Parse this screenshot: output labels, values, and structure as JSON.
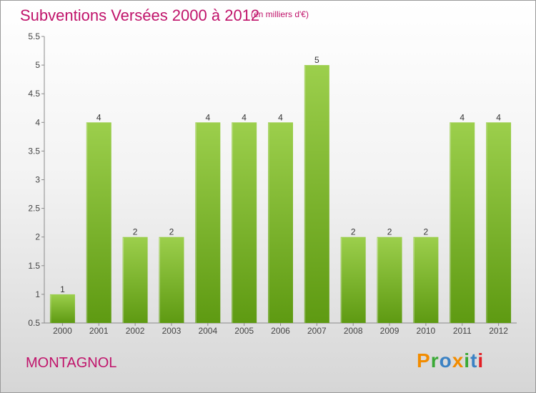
{
  "page": {
    "title": "Subventions Versées 2000 à 2012",
    "subtitle": "(en milliers d'€)",
    "commune": "MONTAGNOL",
    "logo_text": "Proxiti"
  },
  "colors": {
    "accent_text": "#c0146b",
    "bar_top": "#9ccf4c",
    "bar_bottom": "#5e9a12",
    "logo_letters": [
      "#f28c00",
      "#3aa935",
      "#3b82c4",
      "#f28c00",
      "#3aa935",
      "#3b82c4",
      "#e31e24"
    ]
  },
  "chart_data": {
    "type": "bar",
    "title": "Subventions Versées 2000 à 2012",
    "subtitle": "(en milliers d'€)",
    "xlabel": "",
    "ylabel": "",
    "categories": [
      "2000",
      "2001",
      "2002",
      "2003",
      "2004",
      "2005",
      "2006",
      "2007",
      "2008",
      "2009",
      "2010",
      "2011",
      "2012"
    ],
    "values": [
      1,
      4,
      2,
      2,
      4,
      4,
      4,
      5,
      2,
      2,
      2,
      4,
      4
    ],
    "data_labels": [
      "1",
      "4",
      "2",
      "2",
      "4",
      "4",
      "4",
      "5",
      "2",
      "2",
      "2",
      "4",
      "4"
    ],
    "ylim": [
      0.5,
      5.5
    ],
    "yticks": [
      0.5,
      1,
      1.5,
      2,
      2.5,
      3,
      3.5,
      4,
      4.5,
      5,
      5.5
    ],
    "ytick_labels": [
      "0.5",
      "1",
      "1.5",
      "2",
      "2.5",
      "3",
      "3.5",
      "4",
      "4.5",
      "5",
      "5.5"
    ],
    "grid": false,
    "legend": "none"
  }
}
